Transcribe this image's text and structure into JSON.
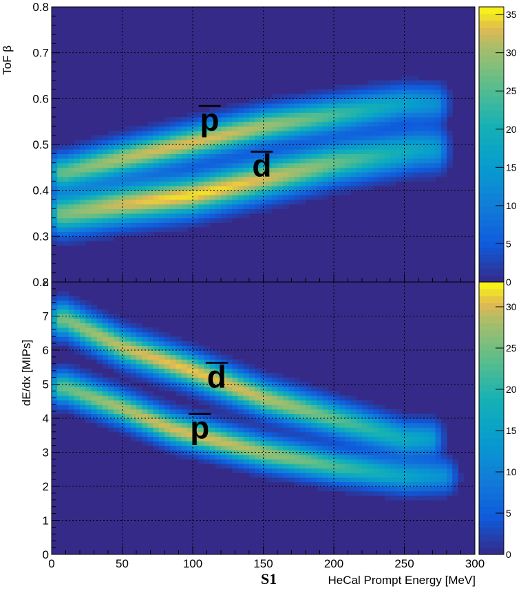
{
  "chart_data": [
    {
      "type": "heatmap",
      "title": "",
      "xlabel": "",
      "ylabel": "ToF β",
      "xlim": [
        0,
        300
      ],
      "ylim": [
        0.2,
        0.8
      ],
      "x_ticks": [
        0,
        50,
        100,
        150,
        200,
        250,
        300
      ],
      "y_ticks": [
        0.2,
        0.3,
        0.4,
        0.5,
        0.6,
        0.7,
        0.8
      ],
      "y_tick_labels": [
        "0.2",
        "0.3",
        "0.4",
        "0.5",
        "0.6",
        "0.7",
        "0.8"
      ],
      "grid": true,
      "colorbar": {
        "min": 0,
        "max": 36,
        "ticks": [
          0,
          5,
          10,
          15,
          20,
          25,
          30,
          35
        ]
      },
      "bands": [
        {
          "label": "p",
          "points": [
            [
              10,
              0.44
            ],
            [
              50,
              0.47
            ],
            [
              100,
              0.505
            ],
            [
              150,
              0.54
            ],
            [
              200,
              0.565
            ],
            [
              250,
              0.59
            ]
          ],
          "peak": 33
        },
        {
          "label": "d",
          "points": [
            [
              10,
              0.35
            ],
            [
              50,
              0.37
            ],
            [
              100,
              0.39
            ],
            [
              150,
              0.425
            ],
            [
              200,
              0.46
            ],
            [
              260,
              0.49
            ]
          ],
          "peak": 35
        }
      ],
      "annotations": [
        {
          "text": "p",
          "overbar": true,
          "x": 112,
          "y": 0.53
        },
        {
          "text": "d",
          "overbar": true,
          "x": 149,
          "y": 0.43
        }
      ]
    },
    {
      "type": "heatmap",
      "title": "",
      "xlabel": "HeCal Prompt Energy [MeV]",
      "ylabel": "dE/dx [MIPs]",
      "xlim": [
        0,
        300
      ],
      "ylim": [
        0,
        8
      ],
      "x_ticks": [
        0,
        50,
        100,
        150,
        200,
        250,
        300
      ],
      "y_ticks": [
        0,
        1,
        2,
        3,
        4,
        5,
        6,
        7,
        8
      ],
      "y_tick_labels": [
        "0",
        "1",
        "2",
        "3",
        "4",
        "5",
        "6",
        "7",
        "8"
      ],
      "grid": true,
      "colorbar": {
        "min": 0,
        "max": 33,
        "ticks": [
          0,
          5,
          10,
          15,
          20,
          25,
          30
        ]
      },
      "bands": [
        {
          "label": "d",
          "points": [
            [
              10,
              6.9
            ],
            [
              50,
              6.1
            ],
            [
              100,
              5.4
            ],
            [
              150,
              4.6
            ],
            [
              200,
              4.0
            ],
            [
              250,
              3.4
            ]
          ],
          "peak": 31
        },
        {
          "label": "p",
          "points": [
            [
              10,
              4.9
            ],
            [
              50,
              4.3
            ],
            [
              85,
              3.7
            ],
            [
              150,
              3.0
            ],
            [
              200,
              2.6
            ],
            [
              250,
              2.3
            ]
          ],
          "peak": 30
        }
      ],
      "annotations": [
        {
          "text": "d",
          "overbar": true,
          "x": 117,
          "y": 4.9
        },
        {
          "text": "p",
          "overbar": true,
          "x": 105,
          "y": 3.4
        }
      ]
    }
  ],
  "figure_label": "S1"
}
